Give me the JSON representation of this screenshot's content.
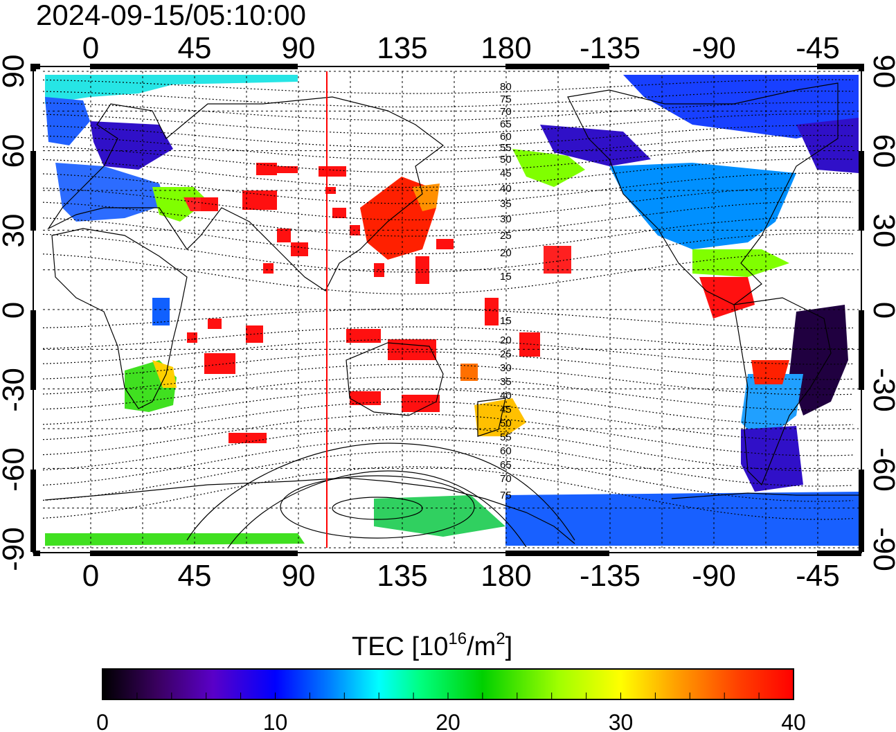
{
  "timestamp": "2024-09-15/05:10:00",
  "lon_labels": [
    "0",
    "45",
    "90",
    "135",
    "180",
    "-135",
    "-90",
    "-45"
  ],
  "lat_labels": [
    "90",
    "60",
    "30",
    "0",
    "-30",
    "-60",
    "-90"
  ],
  "contour_labels_north": [
    "80",
    "75",
    "70",
    "65",
    "60",
    "55",
    "50",
    "45",
    "40",
    "35",
    "30",
    "25",
    "20",
    "15"
  ],
  "contour_labels_south": [
    "15",
    "20",
    "25",
    "30",
    "35",
    "40",
    "45",
    "50",
    "55",
    "60",
    "65",
    "70",
    "75"
  ],
  "colorbar": {
    "title_main": "TEC  [10",
    "title_sup1": "16",
    "title_mid": "/m",
    "title_sup2": "2",
    "title_end": "]",
    "ticks": [
      "0",
      "10",
      "20",
      "30",
      "40"
    ],
    "stops": [
      "#000000",
      "#3a0060",
      "#5a00c8",
      "#0000ff",
      "#0080ff",
      "#00ffff",
      "#00ff80",
      "#00d000",
      "#a0ff00",
      "#ffff00",
      "#ffa000",
      "#ff4000",
      "#ff0000"
    ]
  },
  "terminator_lon": 100,
  "colors": {
    "terminator": "#ff0000",
    "grid": "#000000"
  }
}
